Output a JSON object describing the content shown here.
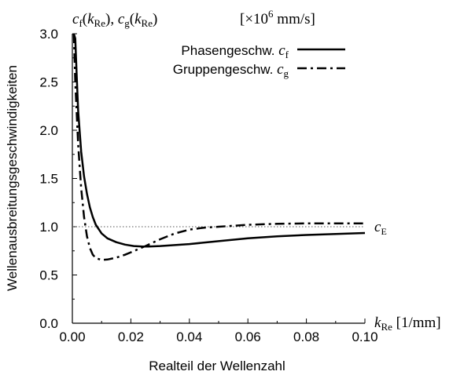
{
  "chart_data": {
    "type": "line",
    "title_fn_f": "c",
    "title_fn_f_sub": "f",
    "title_fn_arg": "k",
    "title_fn_arg_sub": "Re",
    "title_fn_g": "c",
    "title_fn_g_sub": "g",
    "title_unit_prefix": "[×10",
    "title_unit_exp": "6",
    "title_unit_rest": " mm/s]",
    "ylabel": "Wellenausbreitungsgeschwindigkeiten",
    "xlabel": "Realteil der Wellenzahl",
    "x_axis_end_var": "k",
    "x_axis_end_sub": "Re",
    "x_axis_end_unit": " [1/mm]",
    "ref_line": {
      "y": 1.0,
      "label": "c",
      "label_sub": "E"
    },
    "xlim": [
      0,
      0.1
    ],
    "ylim": [
      0,
      3.0
    ],
    "xticks": [
      "0.00",
      "0.02",
      "0.04",
      "0.06",
      "0.08",
      "0.10"
    ],
    "yticks": [
      "0.0",
      "0.5",
      "1.0",
      "1.5",
      "2.0",
      "2.5",
      "3.0"
    ],
    "legend": {
      "position": "top-right",
      "entries": [
        {
          "text": "Phasengeschw. ",
          "var": "c",
          "sub": "f",
          "style": "solid"
        },
        {
          "text": "Gruppengeschw. ",
          "var": "c",
          "sub": "g",
          "style": "dashdot"
        }
      ]
    },
    "series": [
      {
        "style": "solid",
        "x": [
          0.0005,
          0.001,
          0.0015,
          0.002,
          0.003,
          0.004,
          0.005,
          0.006,
          0.007,
          0.008,
          0.01,
          0.012,
          0.015,
          0.018,
          0.021,
          0.024,
          0.026,
          0.03,
          0.035,
          0.04,
          0.05,
          0.06,
          0.07,
          0.08,
          0.09,
          0.1
        ],
        "y": [
          3.0,
          2.95,
          2.55,
          2.2,
          1.78,
          1.52,
          1.34,
          1.2,
          1.1,
          1.02,
          0.93,
          0.88,
          0.84,
          0.815,
          0.8,
          0.795,
          0.795,
          0.8,
          0.81,
          0.82,
          0.85,
          0.88,
          0.9,
          0.915,
          0.925,
          0.935
        ]
      },
      {
        "style": "dashdot",
        "x": [
          0.0005,
          0.001,
          0.002,
          0.003,
          0.004,
          0.005,
          0.006,
          0.007,
          0.008,
          0.01,
          0.012,
          0.015,
          0.018,
          0.02,
          0.025,
          0.03,
          0.035,
          0.04,
          0.045,
          0.05,
          0.055,
          0.06,
          0.07,
          0.08,
          0.09,
          0.1
        ],
        "y": [
          3.0,
          2.5,
          1.85,
          1.4,
          1.1,
          0.9,
          0.78,
          0.71,
          0.675,
          0.655,
          0.66,
          0.68,
          0.71,
          0.735,
          0.8,
          0.87,
          0.93,
          0.97,
          0.99,
          1.0,
          1.01,
          1.02,
          1.03,
          1.035,
          1.035,
          1.035
        ]
      }
    ],
    "grid": false
  }
}
